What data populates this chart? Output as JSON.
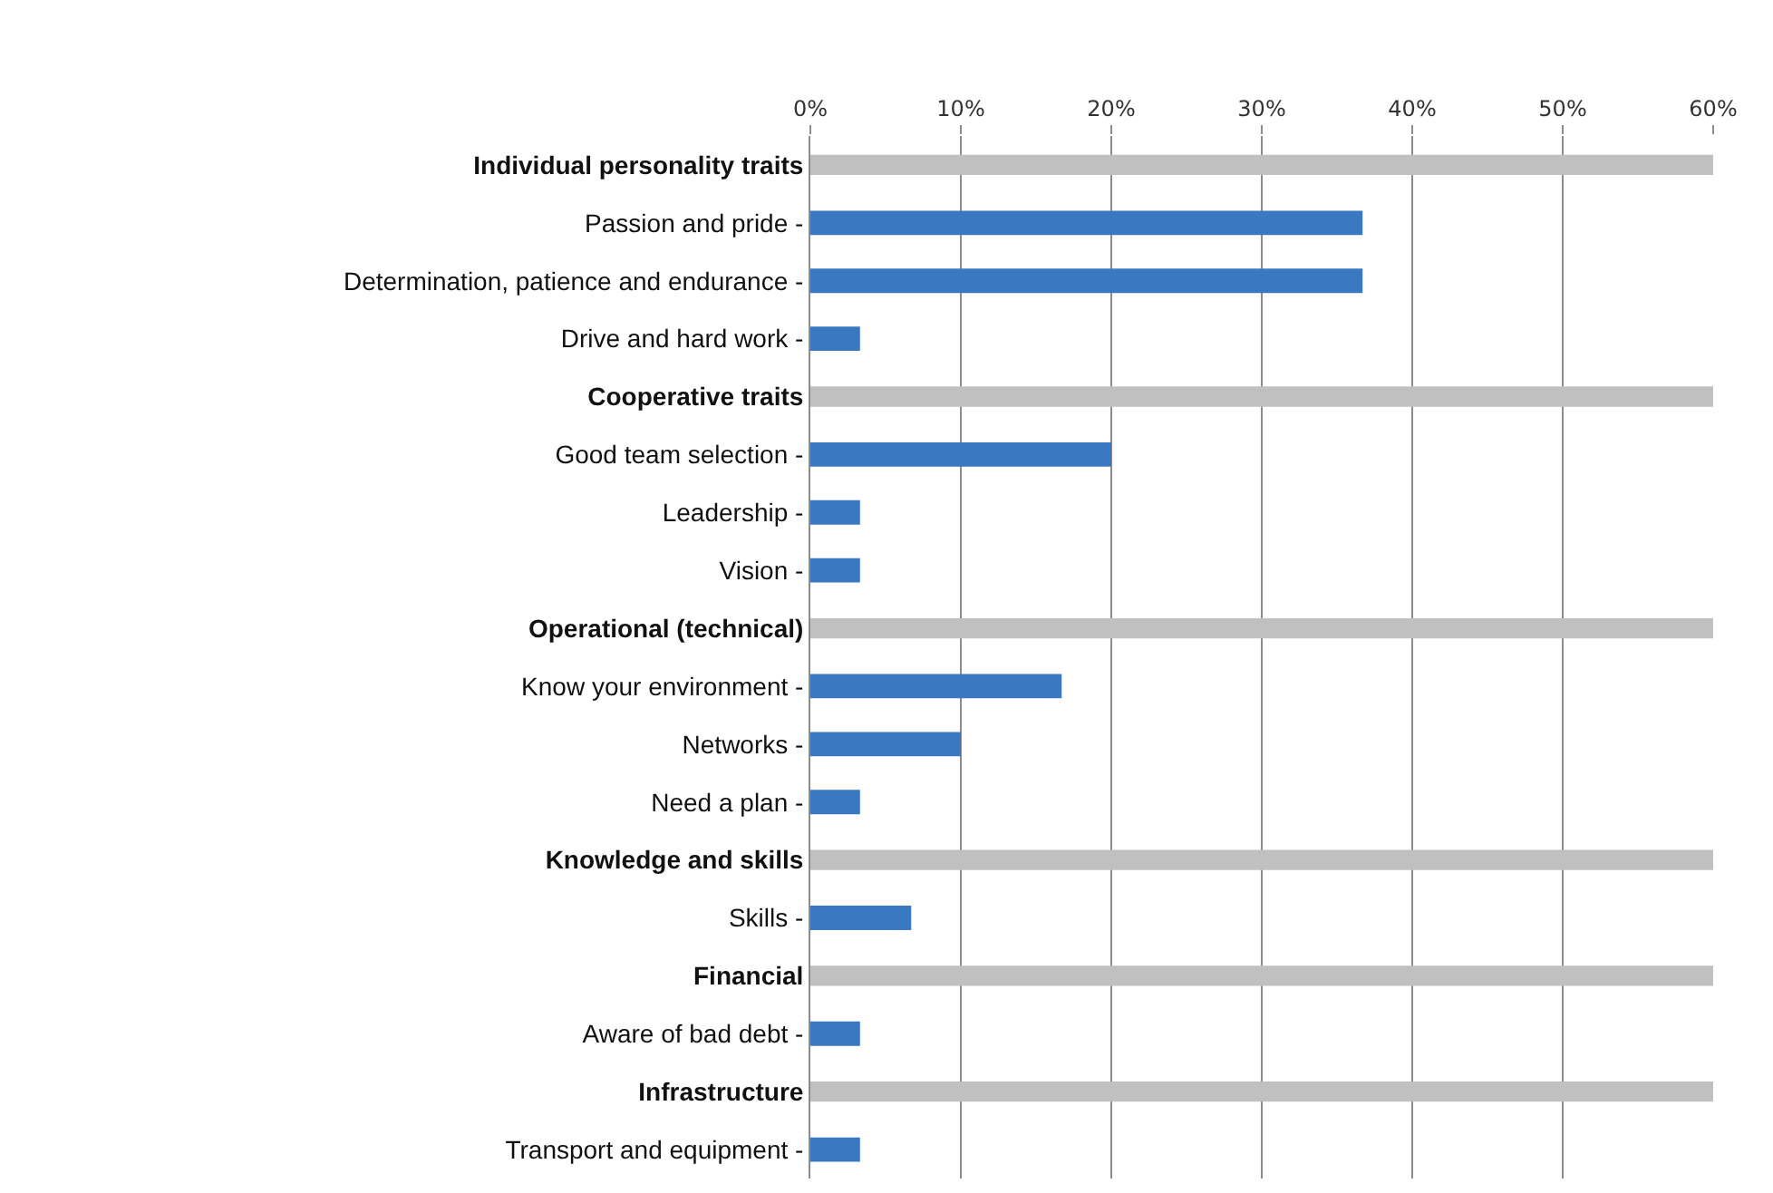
{
  "chart_data": {
    "type": "bar",
    "orientation": "horizontal",
    "categories": [
      "Individual personality traits",
      "Passion and pride -",
      "Determination, patience and endurance -",
      "Drive and hard work -",
      "Cooperative traits",
      "Good team selection -",
      "Leadership -",
      "Vision -",
      "Operational (technical)",
      "Know your environment -",
      "Networks -",
      "Need a plan -",
      "Knowledge and skills",
      "Skills -",
      "Financial",
      "Aware of bad debt -",
      "Infrastructure",
      "Transport and equipment -"
    ],
    "series": [
      {
        "color": "#c0c0c0",
        "values": [
          60,
          null,
          null,
          null,
          60,
          null,
          null,
          null,
          60,
          null,
          null,
          null,
          60,
          null,
          60,
          null,
          60,
          null
        ]
      },
      {
        "color": "#3a78c2",
        "values": [
          null,
          36.7,
          36.7,
          3.3,
          null,
          20,
          3.3,
          3.3,
          null,
          16.7,
          10,
          3.3,
          null,
          6.7,
          null,
          3.3,
          null,
          3.3
        ]
      }
    ],
    "xlim": [
      0,
      60
    ],
    "xticks": [
      {
        "value": 0,
        "label": "0%"
      },
      {
        "value": 10,
        "label": "10%"
      },
      {
        "value": 20,
        "label": "20%"
      },
      {
        "value": 30,
        "label": "30%"
      },
      {
        "value": 40,
        "label": "40%"
      },
      {
        "value": 50,
        "label": "50%"
      },
      {
        "value": 60,
        "label": "60%"
      }
    ],
    "grid": "x"
  }
}
